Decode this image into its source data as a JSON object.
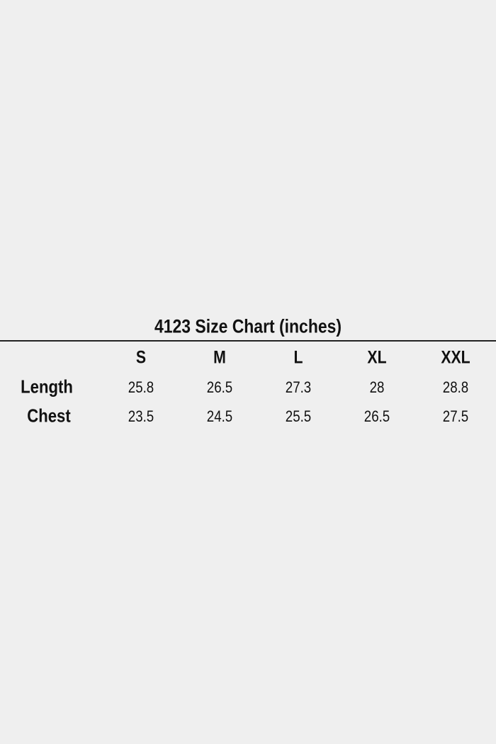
{
  "title": "4123 Size Chart (inches)",
  "table": {
    "columns": [
      "S",
      "M",
      "L",
      "XL",
      "XXL"
    ],
    "rows": [
      {
        "label": "Length",
        "values": [
          "25.8",
          "26.5",
          "27.3",
          "28",
          "28.8"
        ]
      },
      {
        "label": "Chest",
        "values": [
          "23.5",
          "24.5",
          "25.5",
          "26.5",
          "27.5"
        ]
      }
    ]
  }
}
